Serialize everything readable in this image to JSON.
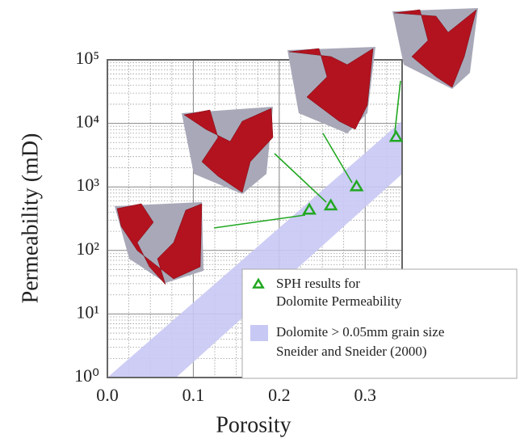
{
  "chart_data": {
    "type": "scatter",
    "x_label": "Porosity",
    "y_label": "Permeability (mD)",
    "xlim": [
      0,
      0.343
    ],
    "ylim": [
      1,
      100000
    ],
    "log_y": true,
    "grid": true,
    "minor_grid": true,
    "xticks": [
      {
        "value": 0,
        "label": "0.0"
      },
      0.1,
      0.2,
      0.3
    ],
    "yticks": [
      {
        "value": 1,
        "label": "10⁰"
      },
      {
        "value": 10,
        "label": "10¹"
      },
      {
        "value": 100,
        "label": "10²"
      },
      {
        "value": 1000,
        "label": "10³"
      },
      {
        "value": 10000,
        "label": "10⁴"
      },
      {
        "value": 100000,
        "label": "10⁵"
      }
    ],
    "legend": "lower right",
    "series": [
      {
        "name": [
          "SPH results for",
          "Dolomite Permeability"
        ],
        "color": "#22a822",
        "marker": "triangle",
        "x": [
          0.235,
          0.26,
          0.29,
          0.336
        ],
        "values": [
          430,
          500,
          1000,
          6000
        ]
      }
    ],
    "band": {
      "name": [
        "Dolomite > 0.05mm grain size",
        "Sneider and Sneider (2000)"
      ],
      "color": "#c8c8f4",
      "upper": {
        "x": [
          0,
          0.343
        ],
        "values": [
          1,
          11000
        ]
      },
      "lower": {
        "x": [
          0.08,
          0.343
        ],
        "values": [
          1,
          1600
        ]
      }
    }
  }
}
